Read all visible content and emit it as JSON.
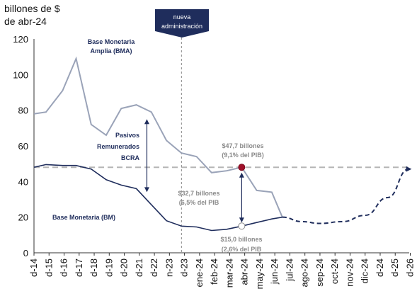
{
  "chart_data": {
    "type": "line",
    "ylabel_line1": "billones de $",
    "ylabel_line2": "de abr-24",
    "ylim": [
      0,
      120
    ],
    "yticks": [
      0,
      20,
      40,
      60,
      80,
      100,
      120
    ],
    "x_labels": [
      "d-14",
      "d-15",
      "d-16",
      "d-17",
      "d-18",
      "d-19",
      "d-20",
      "d-21",
      "d-22",
      "n-23",
      "d-23",
      "ene-24",
      "feb-24",
      "mar-24",
      "abr-24",
      "may-24",
      "jun-24",
      "jul-24",
      "ago-24",
      "sep-24",
      "oct-24",
      "nov-24",
      "dic-24",
      "d-24",
      "d-25",
      "d-26"
    ],
    "series": [
      {
        "name": "Base Monetaria Amplia (BMA)",
        "color": "#9aa3b8",
        "points": [
          [
            0,
            78
          ],
          [
            0.8,
            79
          ],
          [
            1.9,
            91
          ],
          [
            2.8,
            109
          ],
          [
            3.8,
            72
          ],
          [
            4.8,
            66
          ],
          [
            5.8,
            81
          ],
          [
            6.8,
            83
          ],
          [
            7.8,
            79
          ],
          [
            8.8,
            63
          ],
          [
            9.8,
            56
          ],
          [
            10.8,
            54
          ],
          [
            11.8,
            45
          ],
          [
            12.8,
            46
          ],
          [
            13.8,
            48
          ],
          [
            14.8,
            35
          ],
          [
            15.8,
            34
          ],
          [
            16.5,
            20
          ]
        ]
      },
      {
        "name": "Base Monetaria (BM)",
        "color": "#1f2d5c",
        "points": [
          [
            0,
            48
          ],
          [
            0.8,
            49.5
          ],
          [
            1.9,
            49
          ],
          [
            2.8,
            49
          ],
          [
            3.8,
            47
          ],
          [
            4.8,
            41
          ],
          [
            5.8,
            38
          ],
          [
            6.8,
            36
          ],
          [
            7.8,
            27
          ],
          [
            8.8,
            18
          ],
          [
            9.8,
            15
          ],
          [
            10.8,
            14.5
          ],
          [
            11.8,
            12.5
          ],
          [
            12.8,
            13.2
          ],
          [
            13.8,
            15
          ],
          [
            14.8,
            17
          ],
          [
            15.8,
            19
          ],
          [
            16.5,
            20
          ]
        ]
      }
    ],
    "projection": {
      "style": "dashed",
      "color": "#1f2d5c",
      "points": [
        [
          16.5,
          20
        ],
        [
          17.8,
          17.5
        ],
        [
          19,
          16.5
        ],
        [
          20.5,
          17.5
        ],
        [
          22,
          21
        ],
        [
          23.5,
          31
        ],
        [
          24.9,
          47
        ]
      ]
    },
    "reference_line": {
      "y": 48,
      "style": "dashed",
      "color": "#b5b5b5"
    },
    "event_line": {
      "x": 9.8,
      "label_line1": "nueva",
      "label_line2": "administración"
    },
    "markers": [
      {
        "x": 13.8,
        "y": 48,
        "fill": "#a0102a"
      },
      {
        "x": 13.8,
        "y": 15,
        "fill": "#ffffff"
      }
    ],
    "annotations": {
      "bma_line1": "Base Monetaria",
      "bma_line2": "Amplia (BMA)",
      "bm": "Base Monetaria (BM)",
      "pasivos_line1": "Pasivos",
      "pasivos_line2": "Remunerados",
      "pasivos_line3": "BCRA",
      "v1_line1": "$47,7 billones",
      "v1_line2": "(9,1% del PIB)",
      "v2_line1": "$32,7 billones",
      "v2_line2": "(6,5% del PIB",
      "v3_line1": "$15,0 billones",
      "v3_line2": "(2,6% del PIB"
    }
  }
}
